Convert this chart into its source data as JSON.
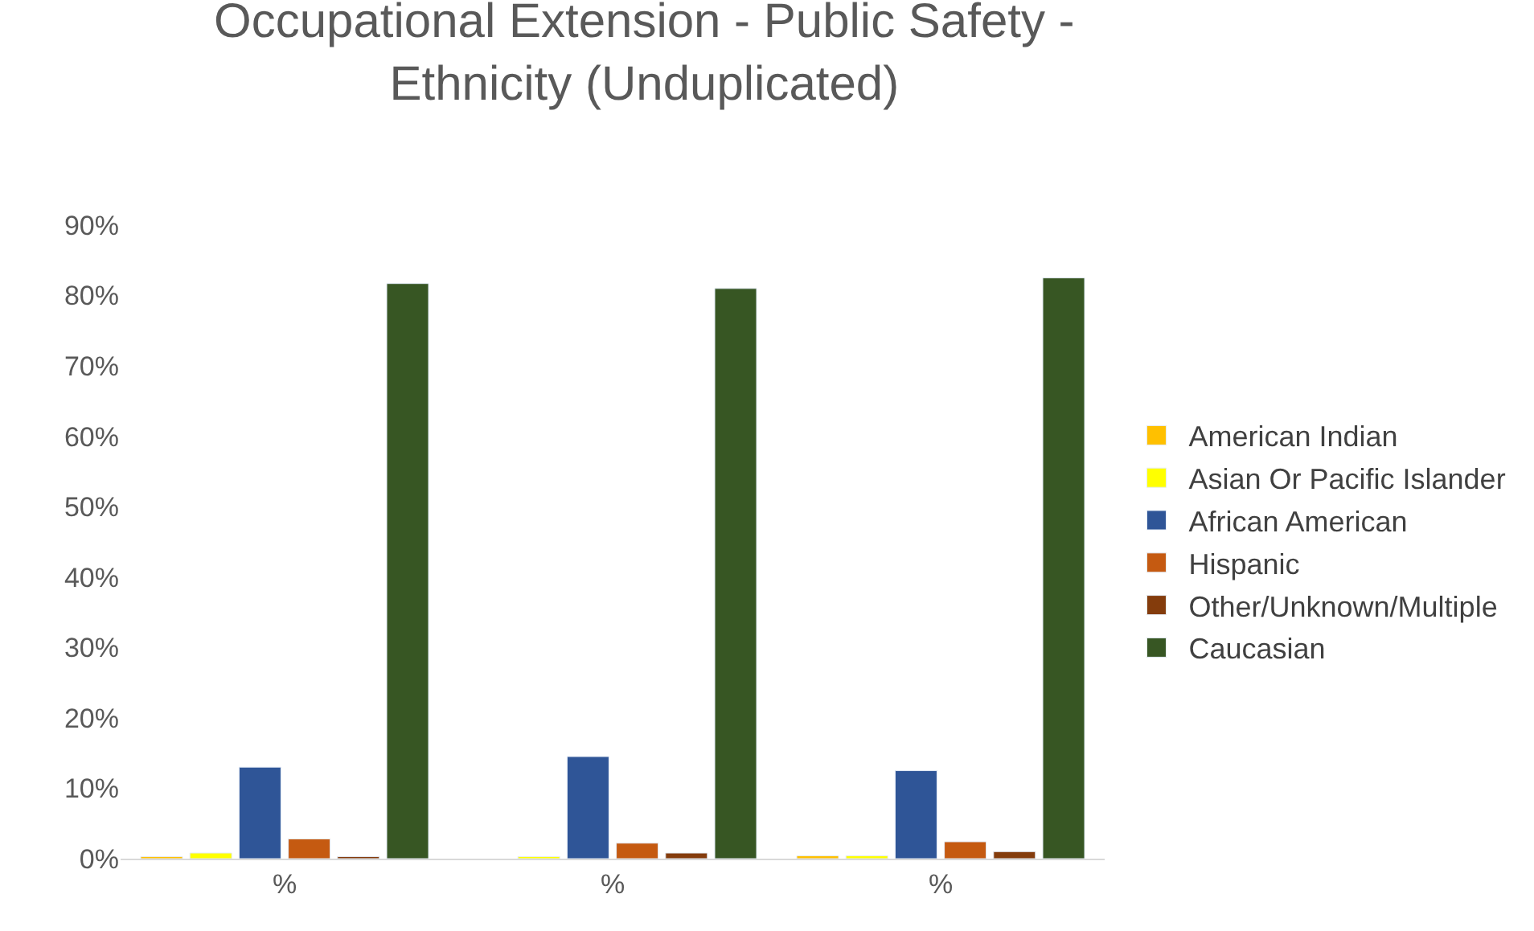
{
  "chart_data": {
    "type": "bar",
    "title": "Occupational Extension - Public Safety -\nEthnicity (Unduplicated)",
    "categories": [
      "%",
      "%",
      "%"
    ],
    "series": [
      {
        "name": "American Indian",
        "color": "#ffc000",
        "values": [
          0.3,
          null,
          0.4
        ]
      },
      {
        "name": "Asian Or Pacific Islander",
        "color": "#ffff00",
        "values": [
          0.8,
          0.3,
          0.4
        ]
      },
      {
        "name": "African American",
        "color": "#2f5597",
        "values": [
          13.0,
          14.5,
          12.5
        ]
      },
      {
        "name": "Hispanic",
        "color": "#c55a11",
        "values": [
          2.8,
          2.2,
          2.4
        ]
      },
      {
        "name": "Other/Unknown/Multiple",
        "color": "#843c0c",
        "values": [
          0.3,
          0.8,
          1.0
        ]
      },
      {
        "name": "Caucasian",
        "color": "#375623",
        "values": [
          81.7,
          81.0,
          82.5
        ]
      }
    ],
    "ylim": [
      0,
      90
    ],
    "yticks": [
      {
        "value": 0,
        "label": "0%"
      },
      {
        "value": 10,
        "label": "10%"
      },
      {
        "value": 20,
        "label": "20%"
      },
      {
        "value": 30,
        "label": "30%"
      },
      {
        "value": 40,
        "label": "40%"
      },
      {
        "value": 50,
        "label": "50%"
      },
      {
        "value": 60,
        "label": "60%"
      },
      {
        "value": 70,
        "label": "70%"
      },
      {
        "value": 80,
        "label": "80%"
      },
      {
        "value": 90,
        "label": "90%"
      }
    ],
    "grid": false,
    "legend": "right"
  }
}
